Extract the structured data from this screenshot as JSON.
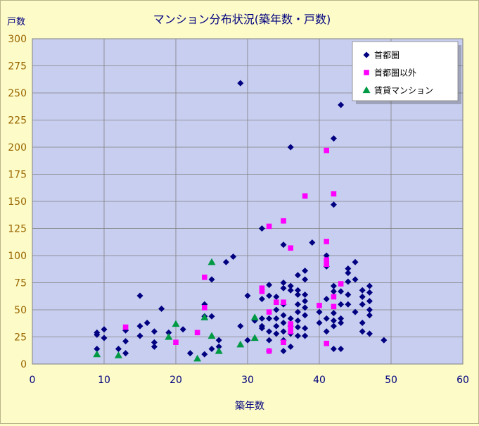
{
  "chart_data": {
    "type": "scatter",
    "title": "マンション分布状況(築年数・戸数)",
    "xlabel": "築年数",
    "ylabel": "戸数",
    "xlim": [
      0,
      60
    ],
    "ylim": [
      0,
      300
    ],
    "x_ticks": [
      0,
      10,
      20,
      30,
      40,
      50,
      60
    ],
    "y_ticks": [
      0,
      25,
      50,
      75,
      100,
      125,
      150,
      175,
      200,
      225,
      250,
      275,
      300
    ],
    "grid": true,
    "legend_position": "top-right",
    "series": [
      {
        "name": "首都圏",
        "marker": "diamond",
        "color": "#000080",
        "points": [
          [
            9,
            29
          ],
          [
            9,
            27
          ],
          [
            9,
            14
          ],
          [
            10,
            32
          ],
          [
            10,
            24
          ],
          [
            12,
            14
          ],
          [
            13,
            31
          ],
          [
            13,
            21
          ],
          [
            13,
            10
          ],
          [
            15,
            63
          ],
          [
            15,
            35
          ],
          [
            15,
            26
          ],
          [
            16,
            38
          ],
          [
            17,
            30
          ],
          [
            17,
            20
          ],
          [
            17,
            16
          ],
          [
            18,
            51
          ],
          [
            19,
            29
          ],
          [
            21,
            32
          ],
          [
            22,
            10
          ],
          [
            24,
            55
          ],
          [
            24,
            44
          ],
          [
            24,
            9
          ],
          [
            25,
            78
          ],
          [
            25,
            44
          ],
          [
            25,
            14
          ],
          [
            26,
            22
          ],
          [
            26,
            16
          ],
          [
            27,
            94
          ],
          [
            28,
            99
          ],
          [
            29,
            259
          ],
          [
            29,
            35
          ],
          [
            30,
            63
          ],
          [
            30,
            22
          ],
          [
            31,
            40
          ],
          [
            32,
            125
          ],
          [
            32,
            60
          ],
          [
            32,
            42
          ],
          [
            32,
            35
          ],
          [
            32,
            33
          ],
          [
            33,
            73
          ],
          [
            33,
            63
          ],
          [
            33,
            42
          ],
          [
            33,
            30
          ],
          [
            33,
            22
          ],
          [
            33,
            12
          ],
          [
            34,
            62
          ],
          [
            34,
            50
          ],
          [
            34,
            42
          ],
          [
            34,
            35
          ],
          [
            34,
            28
          ],
          [
            35,
            110
          ],
          [
            35,
            75
          ],
          [
            35,
            70
          ],
          [
            35,
            55
          ],
          [
            35,
            45
          ],
          [
            35,
            38
          ],
          [
            35,
            30
          ],
          [
            35,
            22
          ],
          [
            35,
            12
          ],
          [
            36,
            200
          ],
          [
            36,
            72
          ],
          [
            36,
            68
          ],
          [
            36,
            42
          ],
          [
            36,
            35
          ],
          [
            36,
            28
          ],
          [
            36,
            16
          ],
          [
            37,
            82
          ],
          [
            37,
            68
          ],
          [
            37,
            64
          ],
          [
            37,
            55
          ],
          [
            37,
            48
          ],
          [
            37,
            40
          ],
          [
            37,
            34
          ],
          [
            37,
            26
          ],
          [
            38,
            86
          ],
          [
            38,
            78
          ],
          [
            38,
            64
          ],
          [
            38,
            58
          ],
          [
            38,
            52
          ],
          [
            38,
            45
          ],
          [
            38,
            33
          ],
          [
            38,
            26
          ],
          [
            39,
            112
          ],
          [
            40,
            48
          ],
          [
            40,
            38
          ],
          [
            41,
            100
          ],
          [
            41,
            90
          ],
          [
            41,
            60
          ],
          [
            41,
            42
          ],
          [
            41,
            30
          ],
          [
            42,
            208
          ],
          [
            42,
            147
          ],
          [
            42,
            72
          ],
          [
            42,
            67
          ],
          [
            42,
            47
          ],
          [
            42,
            40
          ],
          [
            42,
            35
          ],
          [
            42,
            14
          ],
          [
            43,
            239
          ],
          [
            43,
            67
          ],
          [
            43,
            55
          ],
          [
            43,
            42
          ],
          [
            43,
            38
          ],
          [
            43,
            14
          ],
          [
            44,
            88
          ],
          [
            44,
            84
          ],
          [
            44,
            76
          ],
          [
            44,
            64
          ],
          [
            44,
            55
          ],
          [
            45,
            94
          ],
          [
            45,
            78
          ],
          [
            45,
            48
          ],
          [
            46,
            68
          ],
          [
            46,
            62
          ],
          [
            46,
            55
          ],
          [
            46,
            38
          ],
          [
            46,
            30
          ],
          [
            47,
            72
          ],
          [
            47,
            66
          ],
          [
            47,
            58
          ],
          [
            47,
            50
          ],
          [
            47,
            45
          ],
          [
            47,
            28
          ],
          [
            49,
            22
          ]
        ]
      },
      {
        "name": "首都圏以外",
        "marker": "square",
        "color": "#ff00ff",
        "points": [
          [
            13,
            34
          ],
          [
            20,
            20
          ],
          [
            23,
            29
          ],
          [
            24,
            80
          ],
          [
            24,
            52
          ],
          [
            32,
            70
          ],
          [
            32,
            67
          ],
          [
            33,
            127
          ],
          [
            33,
            48
          ],
          [
            33,
            12
          ],
          [
            34,
            57
          ],
          [
            35,
            132
          ],
          [
            35,
            57
          ],
          [
            35,
            20
          ],
          [
            36,
            107
          ],
          [
            36,
            37
          ],
          [
            36,
            34
          ],
          [
            36,
            30
          ],
          [
            38,
            155
          ],
          [
            40,
            54
          ],
          [
            41,
            197
          ],
          [
            41,
            113
          ],
          [
            41,
            96
          ],
          [
            41,
            92
          ],
          [
            41,
            19
          ],
          [
            42,
            157
          ],
          [
            42,
            62
          ],
          [
            42,
            53
          ],
          [
            43,
            74
          ]
        ]
      },
      {
        "name": "賃貸マンション",
        "marker": "triangle",
        "color": "#009944",
        "points": [
          [
            9,
            9
          ],
          [
            12,
            8
          ],
          [
            19,
            25
          ],
          [
            20,
            37
          ],
          [
            23,
            5
          ],
          [
            24,
            43
          ],
          [
            25,
            94
          ],
          [
            25,
            26
          ],
          [
            26,
            12
          ],
          [
            29,
            18
          ],
          [
            31,
            43
          ],
          [
            31,
            24
          ]
        ]
      }
    ]
  }
}
